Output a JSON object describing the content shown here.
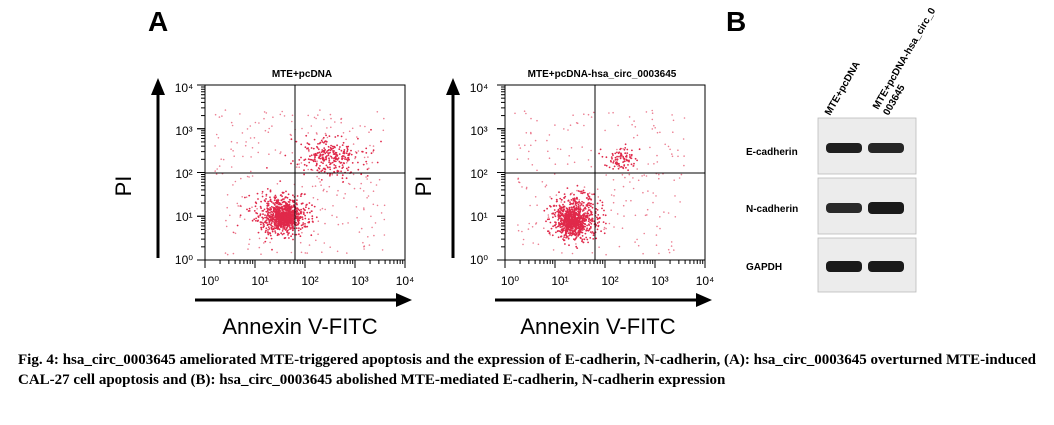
{
  "panel_a_label": "A",
  "panel_b_label": "B",
  "flow": {
    "ylabel": "PI",
    "xlabel": "Annexin V-FITC",
    "tick_labels": [
      "10⁰",
      "10¹",
      "10²",
      "10³",
      "10⁴"
    ],
    "plots": [
      {
        "title": "MTE+pcDNA",
        "dot_color": "#e0294a"
      },
      {
        "title": "MTE+pcDNA-hsa_circ_0003645",
        "dot_color": "#e0294a"
      }
    ]
  },
  "blot": {
    "lane_labels": [
      "MTE+pcDNA",
      "MTE+pcDNA-hsa_circ_0\n003645"
    ],
    "rows": [
      {
        "label": "E-cadherin"
      },
      {
        "label": "N-cadherin"
      },
      {
        "label": "GAPDH"
      }
    ]
  },
  "caption": {
    "label": "Fig. 4:",
    "text": "hsa_circ_0003645 ameliorated MTE-triggered apoptosis and the expression of E-cadherin, N-cadherin, (A): hsa_circ_0003645 overturned MTE-induced CAL-27 cell apoptosis and (B): hsa_circ_0003645 abolished MTE-mediated E-cadherin, N-cadherin expression"
  }
}
